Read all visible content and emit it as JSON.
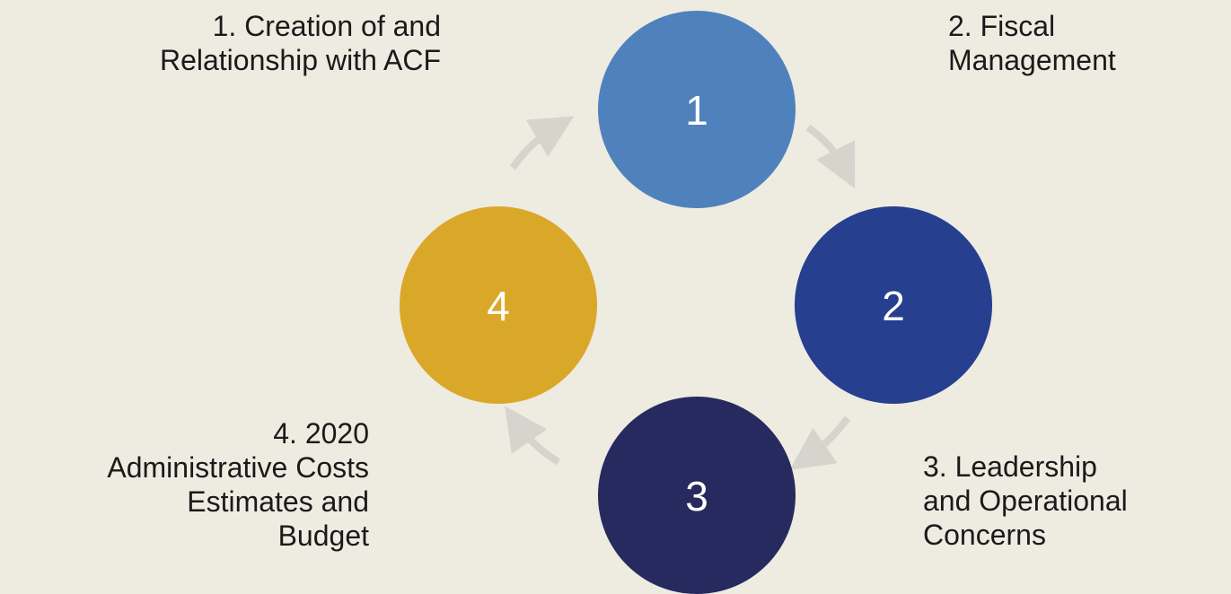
{
  "diagram": {
    "type": "cycle",
    "nodes": [
      {
        "id": "1",
        "number": "1",
        "color": "#4F81BD",
        "label_lines": [
          "1. Creation of and",
          "Relationship with ACF"
        ]
      },
      {
        "id": "2",
        "number": "2",
        "color": "#263F8F",
        "label_lines": [
          "2. Fiscal",
          "Management"
        ]
      },
      {
        "id": "3",
        "number": "3",
        "color": "#262A5E",
        "label_lines": [
          "3. Leadership",
          "and Operational",
          "Concerns"
        ]
      },
      {
        "id": "4",
        "number": "4",
        "color": "#DAA829",
        "label_lines": [
          "4. 2020",
          "Administrative Costs",
          "Estimates and",
          "Budget"
        ]
      }
    ],
    "arrow_color": "#D6D4CD",
    "flow": [
      "1",
      "2",
      "3",
      "4",
      "1"
    ]
  }
}
